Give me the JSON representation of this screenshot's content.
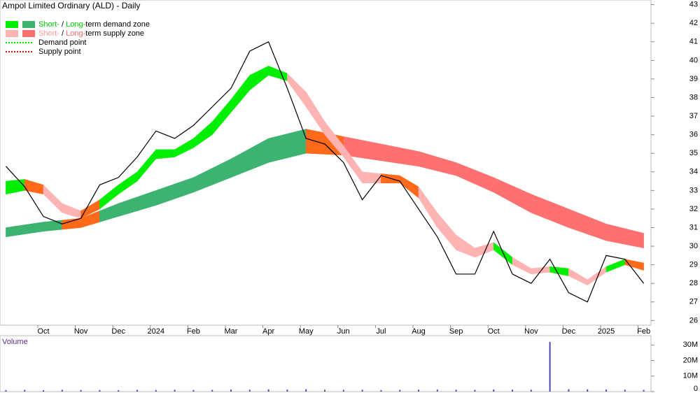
{
  "chart_data": {
    "type": "stock",
    "title": "Ampol Limited Ordinary (ALD) - Daily",
    "categories": [
      null,
      null,
      "Oct",
      null,
      "Nov",
      null,
      "Dec",
      null,
      "2024",
      null,
      "Feb",
      null,
      "Mar",
      null,
      "Apr",
      null,
      "May",
      null,
      "Jun",
      null,
      "Jul",
      null,
      "Aug",
      null,
      "Sep",
      null,
      "Oct",
      null,
      "Nov",
      null,
      "Dec",
      null,
      "2025",
      null,
      "Feb"
    ],
    "series": [
      {
        "name": "Price",
        "color": "#000000",
        "values": [
          34.3,
          33.2,
          31.6,
          31.2,
          31.5,
          33.3,
          33.7,
          34.8,
          36.2,
          35.8,
          36.5,
          37.5,
          38.5,
          40.5,
          41.0,
          38.5,
          35.8,
          35.5,
          34.5,
          32.5,
          33.8,
          33.5,
          32.0,
          30.5,
          28.5,
          28.5,
          30.8,
          28.5,
          28.0,
          29.3,
          27.5,
          27.0,
          29.5,
          29.3,
          28.0
        ]
      }
    ],
    "short_zone": {
      "lower": [
        32.8,
        33.0,
        32.8,
        31.8,
        31.5,
        32.0,
        32.8,
        33.5,
        34.7,
        34.8,
        35.3,
        36.0,
        37.2,
        38.4,
        39.2,
        38.9,
        37.5,
        36.0,
        34.8,
        33.4,
        33.4,
        33.4,
        32.6,
        31.0,
        29.8,
        29.4,
        29.8,
        29.0,
        28.5,
        28.6,
        28.4,
        27.9,
        28.6,
        29.0,
        28.7
      ],
      "upper": [
        33.5,
        33.6,
        33.3,
        32.3,
        31.9,
        32.5,
        33.3,
        34.0,
        35.2,
        35.2,
        35.8,
        36.7,
        37.9,
        39.2,
        39.7,
        39.3,
        38.3,
        36.7,
        35.4,
        34.0,
        33.9,
        33.8,
        33.2,
        31.8,
        30.6,
        29.9,
        30.2,
        29.4,
        28.8,
        28.9,
        28.8,
        28.2,
        28.9,
        29.3,
        29.1
      ]
    },
    "long_zone": {
      "lower": [
        30.5,
        30.65,
        30.8,
        30.9,
        31.0,
        31.3,
        31.6,
        31.9,
        32.2,
        32.55,
        32.9,
        33.3,
        33.7,
        34.1,
        34.5,
        34.75,
        35.0,
        34.95,
        34.9,
        34.75,
        34.6,
        34.45,
        34.3,
        34.05,
        33.8,
        33.35,
        32.9,
        32.35,
        31.8,
        31.4,
        31.0,
        30.65,
        30.3,
        30.1,
        29.9
      ],
      "upper": [
        31.0,
        31.15,
        31.3,
        31.4,
        31.5,
        31.9,
        32.3,
        32.65,
        33.0,
        33.35,
        33.7,
        34.2,
        34.7,
        35.25,
        35.8,
        36.05,
        36.3,
        36.1,
        35.9,
        35.7,
        35.5,
        35.3,
        35.1,
        34.8,
        34.5,
        34.1,
        33.7,
        33.25,
        32.8,
        32.4,
        32.0,
        31.6,
        31.2,
        30.95,
        30.7
      ]
    },
    "colors": {
      "short_demand": "#00ee00",
      "long_demand": "#3cb371",
      "short_supply": "#ffb3b3",
      "long_supply": "#ff7070",
      "overlap": "#ff6a1a"
    },
    "ylim": [
      25.75,
      43.25
    ],
    "yticks": [
      26,
      27,
      28,
      29,
      30,
      31,
      32,
      33,
      34,
      35,
      36,
      37,
      38,
      39,
      40,
      41,
      42,
      43
    ],
    "legend": [
      {
        "swatches": [
          "#00ee00",
          "#3cb371"
        ],
        "parts": [
          "Short-",
          " / ",
          "Long-",
          "term demand zone"
        ],
        "part_colors": [
          "#00cc00",
          "#000000",
          "#00cc00",
          "#000000"
        ]
      },
      {
        "swatches": [
          "#ffb3b3",
          "#ff7070"
        ],
        "parts": [
          "Short-",
          " / ",
          "Long-",
          "term supply zone"
        ],
        "part_colors": [
          "#ff9999",
          "#000000",
          "#ff6666",
          "#000000"
        ]
      },
      {
        "dots": "#00dd00",
        "parts": [
          "Demand point"
        ],
        "part_colors": [
          "#000000"
        ]
      },
      {
        "dots": "#ee0000",
        "parts": [
          "Supply point"
        ],
        "part_colors": [
          "#000000"
        ]
      }
    ],
    "volume": {
      "label": "Volume",
      "color": "#4b4bb4",
      "values": [
        1000000,
        1100000,
        900000,
        1200000,
        1000000,
        1000000,
        900000,
        1100000,
        1000000,
        1200000,
        1000000,
        1100000,
        1300000,
        1200000,
        1400000,
        1300000,
        1500000,
        1200000,
        1100000,
        1200000,
        1000000,
        1100000,
        1200000,
        1300000,
        1200000,
        1100000,
        1300000,
        1200000,
        1200000,
        32000000,
        1500000,
        1400000,
        1300000,
        1200000,
        1100000
      ],
      "ylim": [
        0,
        36000000
      ],
      "yticks": [
        0,
        {
          "value": 10000000,
          "label": "10M"
        },
        {
          "value": 20000000,
          "label": "20M"
        },
        {
          "value": 30000000,
          "label": "30M"
        }
      ]
    }
  }
}
